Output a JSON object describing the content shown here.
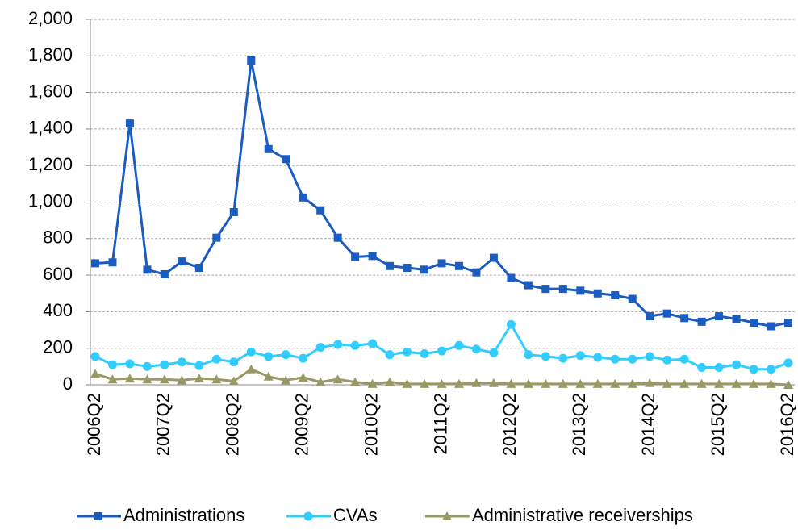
{
  "chart_data": {
    "type": "line",
    "categories": [
      "2006Q2",
      null,
      null,
      null,
      "2007Q2",
      null,
      null,
      null,
      "2008Q2",
      null,
      null,
      null,
      "2009Q2",
      null,
      null,
      null,
      "2010Q2",
      null,
      null,
      null,
      "2011Q2",
      null,
      null,
      null,
      "2012Q2",
      null,
      null,
      null,
      "2013Q2",
      null,
      null,
      null,
      "2014Q2",
      null,
      null,
      null,
      "2015Q2",
      null,
      null,
      null,
      "2016Q2"
    ],
    "series": [
      {
        "name": "Administrations",
        "color": "#1a5cc0",
        "marker": "square",
        "values": [
          665,
          670,
          1430,
          630,
          605,
          675,
          640,
          805,
          945,
          1775,
          1290,
          1235,
          1025,
          955,
          805,
          700,
          705,
          650,
          640,
          630,
          665,
          650,
          615,
          695,
          585,
          545,
          525,
          525,
          515,
          500,
          490,
          470,
          375,
          390,
          365,
          345,
          375,
          360,
          340,
          320,
          340
        ]
      },
      {
        "name": "CVAs",
        "color": "#33ccff",
        "marker": "circle",
        "values": [
          155,
          110,
          115,
          100,
          110,
          125,
          105,
          140,
          125,
          180,
          155,
          165,
          145,
          205,
          220,
          215,
          225,
          165,
          180,
          170,
          185,
          215,
          195,
          175,
          330,
          165,
          155,
          145,
          160,
          150,
          140,
          140,
          155,
          135,
          140,
          95,
          95,
          110,
          85,
          85,
          120
        ]
      },
      {
        "name": "Administrative receiverships",
        "color": "#999966",
        "marker": "triangle",
        "values": [
          60,
          30,
          35,
          30,
          30,
          25,
          35,
          30,
          20,
          85,
          45,
          25,
          40,
          15,
          30,
          15,
          5,
          15,
          5,
          5,
          5,
          5,
          10,
          10,
          5,
          5,
          5,
          5,
          5,
          5,
          5,
          5,
          10,
          5,
          5,
          5,
          5,
          5,
          5,
          5,
          0
        ]
      }
    ],
    "ylim": [
      0,
      2000
    ],
    "yticks": [
      0,
      200,
      400,
      600,
      800,
      {
        "value": 1000,
        "label": "1,000"
      },
      {
        "value": 1200,
        "label": "1,200"
      },
      {
        "value": 1400,
        "label": "1,400"
      },
      {
        "value": 1600,
        "label": "1,600"
      },
      {
        "value": 1800,
        "label": "1,800"
      },
      {
        "value": 2000,
        "label": "2,000"
      }
    ],
    "grid": true,
    "legend": "bottom"
  }
}
